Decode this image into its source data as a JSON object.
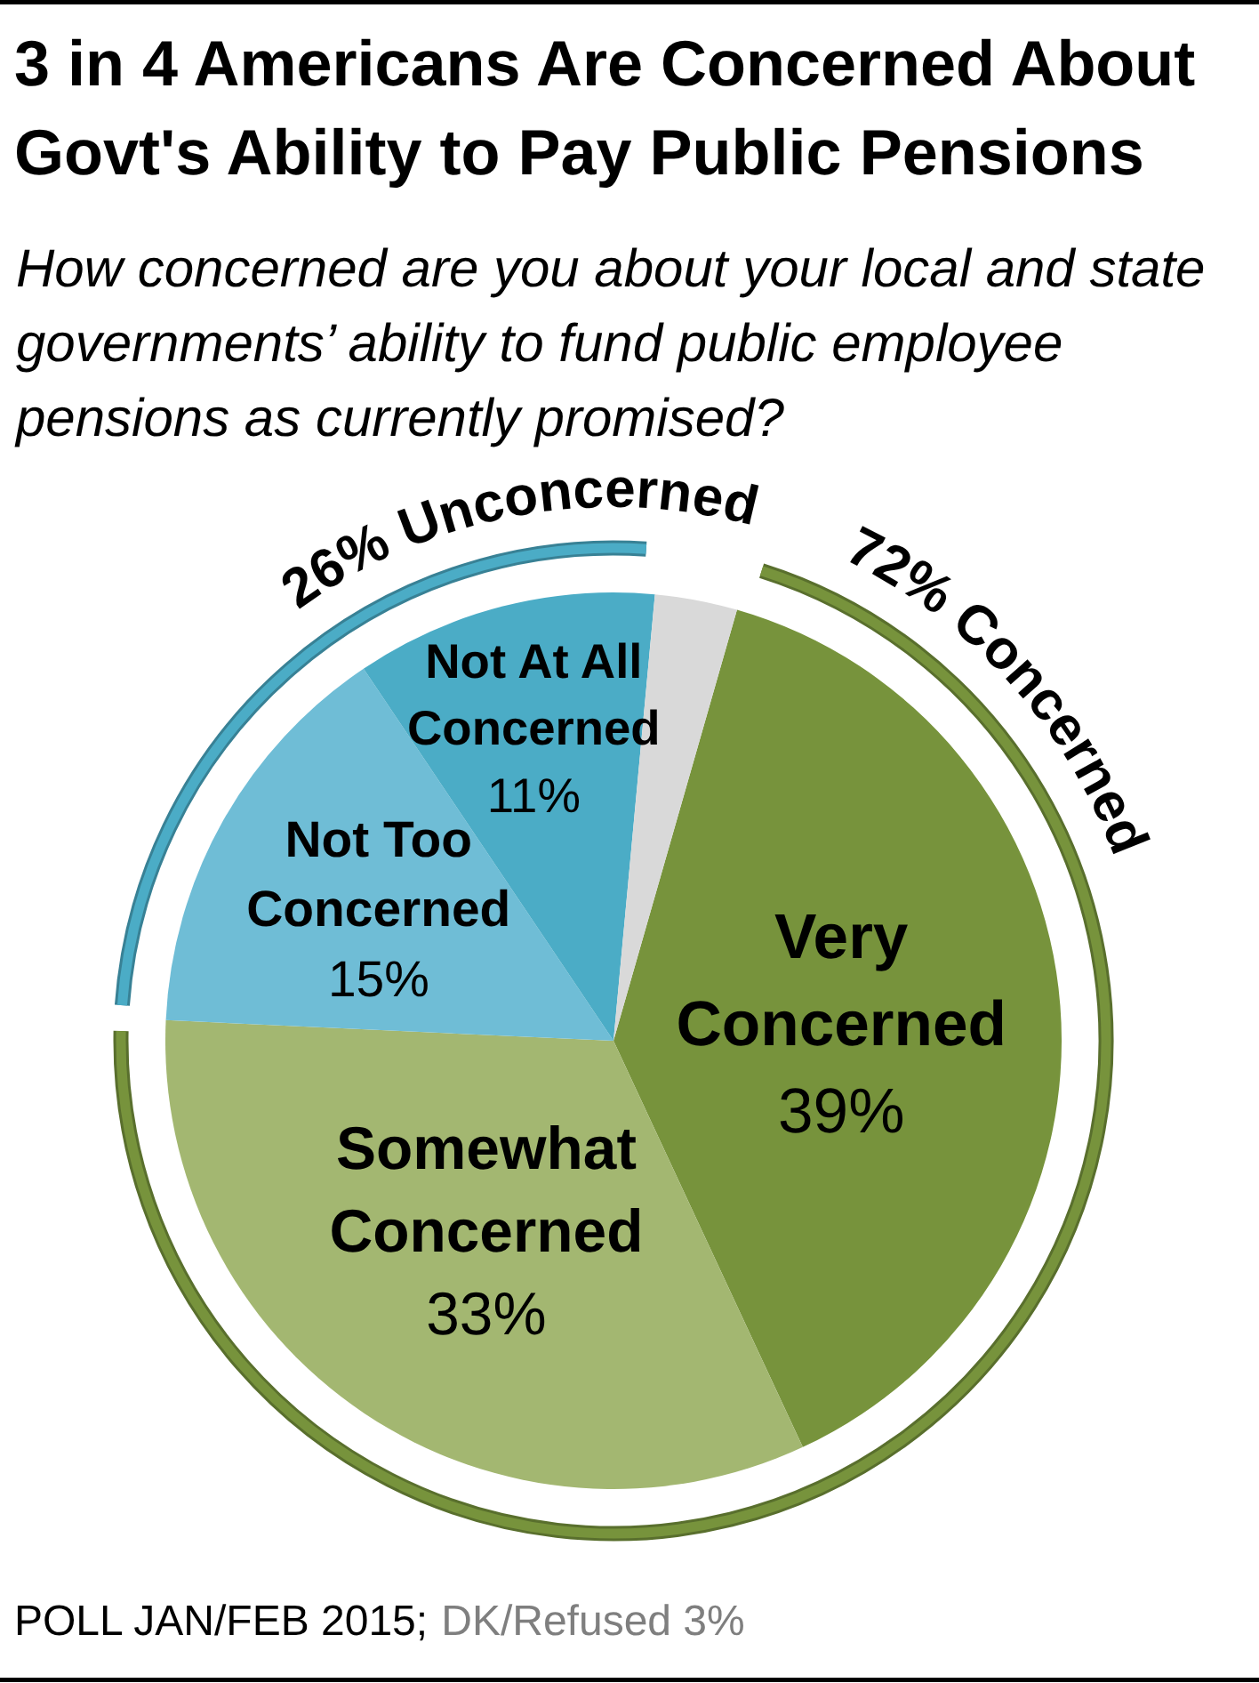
{
  "chart_data": {
    "type": "pie",
    "title": "3 in 4 Americans Are Concerned About Govt's Ability to Pay Public Pensions",
    "subtitle": "How concerned are you about your local and state governments’ ability to fund public employee pensions as currently promised?",
    "categories": [
      "Very Concerned",
      "Somewhat Concerned",
      "Not Too Concerned",
      "Not At All Concerned",
      null
    ],
    "values": [
      39,
      33,
      15,
      11,
      3
    ],
    "value_labels": [
      "39%",
      "33%",
      "15%",
      "11%",
      null
    ],
    "colors": [
      "#77933c",
      "#a3b771",
      "#6fbdd6",
      "#4bacc6",
      "#d9d9d9"
    ],
    "annotations": [
      "26% Unconcerned",
      "72% Concerned",
      "POLL JAN/FEB 2015;",
      "DK/Refused 3%"
    ]
  }
}
